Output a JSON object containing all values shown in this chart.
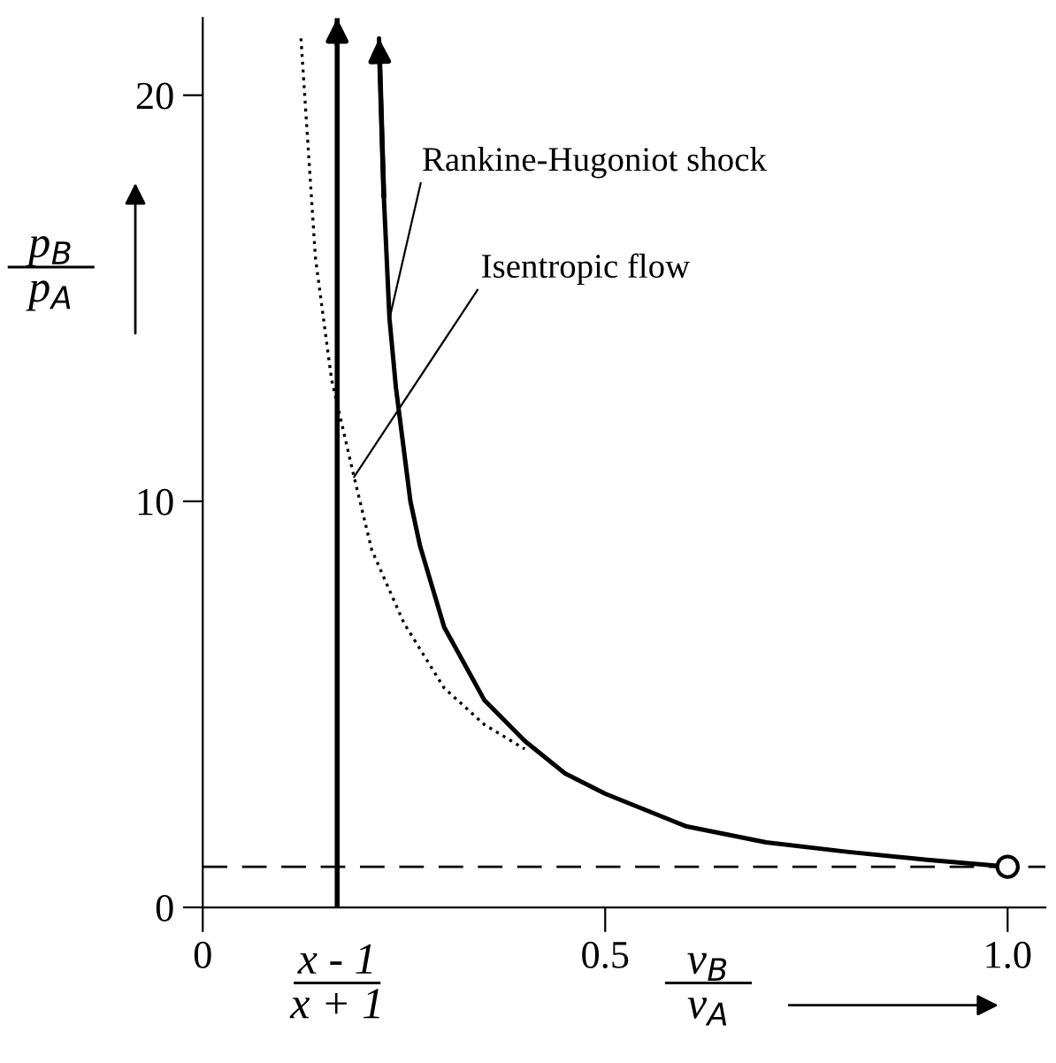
{
  "chart_data": {
    "type": "line",
    "xlabel": "v$_{B}$\nv$_{A}$",
    "ylabel": "p$_{B}$\np$_{A}$",
    "xlim": [
      0,
      1.047
    ],
    "ylim": [
      0,
      21.9
    ],
    "xticks": [
      0,
      0.5,
      {
        "value": 1.0,
        "label": "1.0"
      }
    ],
    "yticks": [
      0,
      10,
      20
    ],
    "grid": false,
    "legend": false,
    "series": [
      {
        "color": "#000000",
        "line_style": "solid",
        "marker": "none",
        "x": [
          0.219,
          0.225,
          0.232,
          0.24,
          0.258,
          0.27,
          0.3,
          0.35,
          0.4,
          0.45,
          0.5,
          0.6,
          0.7,
          0.8,
          0.9,
          1.0
        ],
        "values": [
          21.4,
          17.5,
          14.5,
          12.8,
          10,
          8.9,
          6.9,
          5.1,
          4.1,
          3.3,
          2.8,
          2.0,
          1.6,
          1.37,
          1.17,
          1.0
        ]
      },
      {
        "color": "#000000",
        "line_style": "dotted",
        "marker": "none",
        "x": [
          0.122,
          0.14,
          0.16,
          0.188,
          0.21,
          0.25,
          0.3,
          0.35,
          0.4
        ],
        "values": [
          21.4,
          16,
          13,
          10.6,
          8.8,
          7.0,
          5.4,
          4.5,
          3.9
        ]
      },
      {
        "type": "scatter",
        "color": "#000000",
        "marker": "circle",
        "x": [
          1.0
        ],
        "values": [
          1.0
        ]
      }
    ],
    "ref_lines": [
      {
        "axis": "x",
        "value": 0.167,
        "label": "x - 1\nx + 1",
        "line_style": "solid",
        "color": "#000000"
      },
      {
        "axis": "y",
        "value": 1.0,
        "line_style": "dashed",
        "color": "#000000"
      }
    ],
    "annotations": [
      {
        "text": "Rankine-Hugoniot shock",
        "x": 0.232,
        "y": 14.5
      },
      {
        "text": "Isentropic flow",
        "x": 0.188,
        "y": 10.6
      }
    ]
  }
}
